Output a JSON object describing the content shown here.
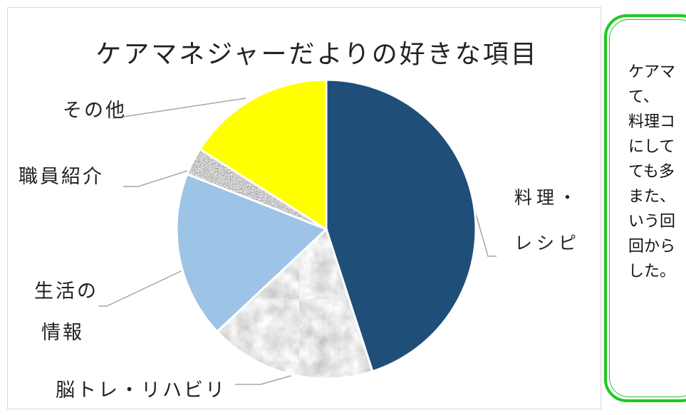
{
  "chart_data": {
    "type": "pie",
    "title": "ケアマネジャーだよりの好きな項目",
    "categories": [
      "料理・レシピ",
      "脳トレ・リハビリ",
      "生活の情報",
      "職員紹介",
      "その他"
    ],
    "values": [
      45,
      18,
      18,
      3,
      16
    ],
    "label_lines": [
      [
        "料理・",
        "レシピ"
      ],
      [
        "脳トレ・リハビリ"
      ],
      [
        "生活の",
        "情報"
      ],
      [
        "職員紹介"
      ],
      [
        "その他"
      ]
    ],
    "colors": [
      "#1f4e79",
      "#e4e4e4",
      "#9dc3e6",
      "#9a9a9a",
      "#ffff00"
    ],
    "start_angle_deg": 0,
    "direction": "clockwise"
  },
  "callout": {
    "text": "ケアマ\nて、\n料理コ\nにして\nても多\nまた、\nいう回\n回から\nした。",
    "border_color": "#1ecb1e"
  }
}
